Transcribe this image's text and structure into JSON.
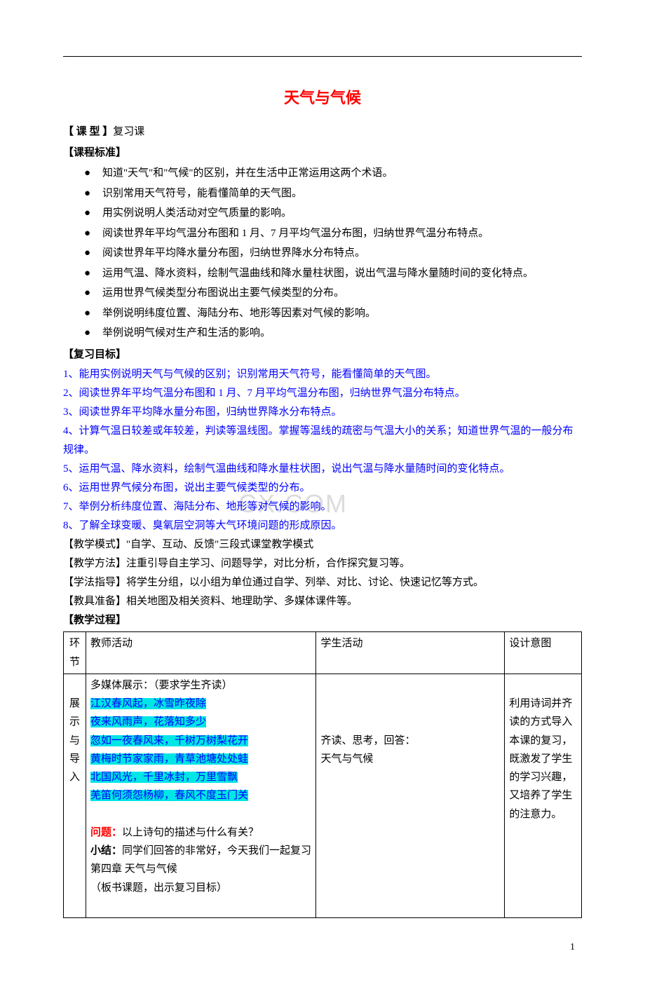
{
  "top_rule_color": "#000000",
  "title": "天气与气候",
  "title_color": "#ff0000",
  "class_type_label": "【 课  型 】",
  "class_type_value": "复习课",
  "curriculum_label": "【课程标准】",
  "curriculum_bullets": [
    "知道\"天气\"和\"气候\"的区别，并在生活中正常运用这两个术语。",
    "识别常用天气符号，能看懂简单的天气图。",
    "用实例说明人类活动对空气质量的影响。",
    "阅读世界年平均气温分布图和 1 月、7 月平均气温分布图，归纳世界气温分布特点。",
    "阅读世界年平均降水量分布图，归纳世界降水分布特点。",
    "运用气温、降水资料，绘制气温曲线和降水量柱状图，说出气温与降水量随时间的变化特点。",
    "运用世界气候类型分布图说出主要气候类型的分布。",
    "举例说明纬度位置、海陆分布、地形等因素对气候的影响。",
    "举例说明气候对生产和生活的影响。"
  ],
  "review_goals_label": "【复习目标】",
  "review_goals": [
    "1、能用实例说明天气与气候的区别；识别常用天气符号，能看懂简单的天气图。",
    "2、阅读世界年平均气温分布图和 1 月、7 月平均气温分布图，归纳世界气温分布特点。",
    "3、阅读世界年平均降水量分布图，归纳世界降水分布特点。",
    "4、计算气温日较差或年较差，判读等温线图。掌握等温线的疏密与气温大小的关系；知道世界气温的一般分布规律。",
    "5、运用气温、降水资料，绘制气温曲线和降水量柱状图，说出气温与降水量随时间的变化特点。",
    "6、运用世界气候分布图，说出主要气候类型的分布。",
    "7、举例分析纬度位置、海陆分布、地形等对气候的影响。",
    "8、了解全球变暖、臭氧层空洞等大气环境问题的形成原因。"
  ],
  "review_goals_color": "#0000ff",
  "teaching_mode_label": "【教学模式】",
  "teaching_mode_value": "\"自学、互动、反馈\"三段式课堂教学模式",
  "teaching_method_label": "【教学方法】",
  "teaching_method_value": "注重引导自主学习、问题导学，对比分析，合作探究复习等。",
  "study_guide_label": "【学法指导】",
  "study_guide_value": "将学生分组，以小组为单位通过自学、列举、对比、讨论、快速记忆等方式。",
  "teaching_tools_label": "【教具准备】",
  "teaching_tools_value": "相关地图及相关资料、地理助学、多媒体课件等。",
  "teaching_process_label": "【教学过程】",
  "watermark_text": "CX.COM",
  "watermark_color": "#dcdcdc",
  "table": {
    "headers": {
      "env": "环节",
      "teacher": "教师活动",
      "student": "学生活动",
      "intent": "设计意图"
    },
    "row1": {
      "env": "展示与导入",
      "teacher_intro": "多媒体展示：（要求学生齐读）",
      "poems": [
        "江汉春风起，冰雪昨夜除",
        "夜来风雨声，花落知多少",
        "忽如一夜春风来，千树万树梨花开",
        "黄梅时节家家雨，青草池塘处处蛙",
        "北国风光，千里冰封，万里雪飘",
        "羌笛何须怨杨柳，春风不度玉门关"
      ],
      "question_label": "问题：",
      "question_text": "以上诗句的描述与什么有关？",
      "summary_label": "小结：",
      "summary_text": "同学们回答的非常好，今天我们一起复习第四章 天气与气候",
      "summary_extra": "（板书课题，出示复习目标）",
      "student": "齐读、思考，回答：\n天气与气候",
      "intent": "利用诗词并齐读的方式导入本课的复习，既激发了学生的学习兴趣，又培养了学生的注意力。"
    }
  },
  "highlight_bg": "#00e5e5",
  "page_number": "1"
}
